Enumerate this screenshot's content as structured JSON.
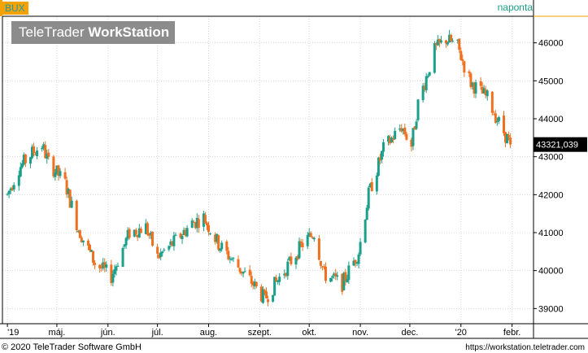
{
  "header": {
    "symbol": "BUX",
    "period": "naponta",
    "logo_regular": "TeleTrader ",
    "logo_bold": "WorkStation"
  },
  "footer": {
    "copyright": "© 2020 TeleTrader Software GmbH",
    "url": "https://workstation.teletrader.com"
  },
  "colors": {
    "up": "#1aa08a",
    "down": "#f07020",
    "grid": "#d8d8d8",
    "frame": "#000000",
    "accent": "#f5a200",
    "last_price_bg": "#000000"
  },
  "chart_data": {
    "type": "candlestick",
    "title": "BUX",
    "ylim": [
      38600,
      46700
    ],
    "y_ticks": [
      39000,
      40000,
      41000,
      42000,
      43000,
      44000,
      45000,
      46000
    ],
    "y_tick_labels": [
      "39000",
      "40000",
      "41000",
      "42000",
      "43000",
      "44000",
      "45000",
      "46000"
    ],
    "x_ticks": [
      {
        "label": "'19",
        "date": "2019-04-01"
      },
      {
        "label": "máj.",
        "date": "2019-05-01"
      },
      {
        "label": "jún.",
        "date": "2019-06-01"
      },
      {
        "label": "júl.",
        "date": "2019-07-01"
      },
      {
        "label": "aug.",
        "date": "2019-08-01"
      },
      {
        "label": "szept.",
        "date": "2019-09-01"
      },
      {
        "label": "okt.",
        "date": "2019-10-01"
      },
      {
        "label": "nov.",
        "date": "2019-11-01"
      },
      {
        "label": "dec.",
        "date": "2019-12-01"
      },
      {
        "label": "'20",
        "date": "2020-01-01"
      },
      {
        "label": "febr.",
        "date": "2020-02-01"
      }
    ],
    "last_value": 43321.039,
    "last_value_label": "43321,039",
    "trend_points": [
      [
        "2019-04-01",
        42000
      ],
      [
        "2019-04-08",
        42700
      ],
      [
        "2019-04-16",
        43100
      ],
      [
        "2019-04-22",
        43300
      ],
      [
        "2019-04-26",
        42850
      ],
      [
        "2019-05-06",
        42300
      ],
      [
        "2019-05-14",
        41100
      ],
      [
        "2019-05-24",
        40200
      ],
      [
        "2019-06-03",
        39850
      ],
      [
        "2019-06-14",
        41000
      ],
      [
        "2019-06-24",
        41150
      ],
      [
        "2019-07-01",
        40350
      ],
      [
        "2019-07-10",
        40700
      ],
      [
        "2019-07-22",
        41250
      ],
      [
        "2019-07-29",
        41400
      ],
      [
        "2019-08-07",
        40700
      ],
      [
        "2019-08-16",
        40250
      ],
      [
        "2019-08-27",
        39700
      ],
      [
        "2019-09-04",
        39250
      ],
      [
        "2019-09-16",
        40000
      ],
      [
        "2019-09-27",
        40700
      ],
      [
        "2019-10-04",
        41000
      ],
      [
        "2019-10-10",
        39900
      ],
      [
        "2019-10-21",
        39650
      ],
      [
        "2019-10-31",
        40500
      ],
      [
        "2019-11-06",
        42000
      ],
      [
        "2019-11-15",
        43200
      ],
      [
        "2019-11-26",
        43800
      ],
      [
        "2019-12-02",
        43300
      ],
      [
        "2019-12-06",
        44400
      ],
      [
        "2019-12-16",
        45800
      ],
      [
        "2019-12-23",
        46100
      ],
      [
        "2019-12-30",
        45900
      ],
      [
        "2020-01-03",
        45400
      ],
      [
        "2020-01-07",
        44950
      ],
      [
        "2020-01-13",
        44700
      ],
      [
        "2020-01-17",
        44550
      ],
      [
        "2020-01-24",
        43900
      ],
      [
        "2020-01-31",
        43321
      ]
    ]
  }
}
